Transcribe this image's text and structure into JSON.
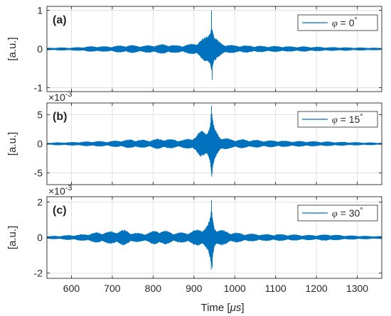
{
  "figure": {
    "xlabel_prefix": "Time [",
    "xlabel_unit": "μs",
    "xlabel_suffix": "]",
    "xticks": [
      "600",
      "700",
      "800",
      "900",
      "1000",
      "1100",
      "1200",
      "1300"
    ],
    "signal_color": "#0072BD",
    "grid_color": "#dcdcdc"
  },
  "chart_data": [
    {
      "type": "line",
      "panel": "(a)",
      "ylabel": "[a.u.]",
      "exponent": null,
      "xlim": [
        540,
        1360
      ],
      "ylim": [
        -1.1,
        1.1
      ],
      "yticks": [
        -1,
        0,
        1
      ],
      "ytick_labels": [
        "-1",
        "0",
        "1"
      ],
      "grid": true,
      "legend": {
        "position": "top-right",
        "label": "φ = 0°",
        "symbol": "φ",
        "equals": " = 0",
        "unit": "°"
      },
      "series": [
        {
          "envelope_x": [
            540,
            560,
            600,
            630,
            660,
            690,
            710,
            730,
            750,
            770,
            790,
            810,
            830,
            850,
            870,
            890,
            905,
            915,
            925,
            935,
            940,
            943,
            946,
            950,
            960,
            970,
            985,
            1000,
            1020,
            1050,
            1080,
            1110,
            1140,
            1170,
            1200,
            1230,
            1260,
            1290,
            1320,
            1360
          ],
          "envelope_amp": [
            0.03,
            0.04,
            0.04,
            0.06,
            0.08,
            0.07,
            0.09,
            0.1,
            0.11,
            0.09,
            0.1,
            0.12,
            0.13,
            0.11,
            0.1,
            0.13,
            0.17,
            0.25,
            0.3,
            0.4,
            0.6,
            1.0,
            0.65,
            0.35,
            0.22,
            0.15,
            0.12,
            0.1,
            0.1,
            0.09,
            0.08,
            0.08,
            0.07,
            0.07,
            0.06,
            0.05,
            0.05,
            0.04,
            0.04,
            0.03
          ],
          "peak_max": 1.0,
          "peak_min": -0.8
        }
      ]
    },
    {
      "type": "line",
      "panel": "(b)",
      "ylabel": "[a.u.]",
      "exponent": "×10^-3",
      "exponent_base": "×10",
      "exponent_power": "-3",
      "xlim": [
        540,
        1360
      ],
      "ylim": [
        -7,
        7
      ],
      "yticks": [
        -5,
        0,
        5
      ],
      "ytick_labels": [
        "-5",
        "0",
        "5"
      ],
      "grid": true,
      "legend": {
        "position": "top-right",
        "label": "φ = 15°",
        "symbol": "φ",
        "equals": " = 15",
        "unit": "°"
      },
      "series": [
        {
          "envelope_x": [
            540,
            560,
            600,
            630,
            660,
            690,
            710,
            730,
            750,
            770,
            790,
            810,
            830,
            850,
            870,
            890,
            905,
            915,
            925,
            935,
            940,
            943,
            946,
            950,
            960,
            970,
            985,
            1000,
            1020,
            1050,
            1080,
            1110,
            1140,
            1170,
            1200,
            1230,
            1260,
            1290,
            1320,
            1360
          ],
          "envelope_amp": [
            0.2,
            0.25,
            0.3,
            0.4,
            0.5,
            0.45,
            0.6,
            0.7,
            0.8,
            0.7,
            0.7,
            0.9,
            0.9,
            0.8,
            0.7,
            1.0,
            1.4,
            2.2,
            2.5,
            3.0,
            4.0,
            6.5,
            4.5,
            2.8,
            1.8,
            1.2,
            0.9,
            0.8,
            0.8,
            0.7,
            0.6,
            0.6,
            0.5,
            0.5,
            0.45,
            0.4,
            0.35,
            0.3,
            0.25,
            0.2
          ],
          "peak_max": 6.5,
          "peak_min": -5.2
        }
      ]
    },
    {
      "type": "line",
      "panel": "(c)",
      "ylabel": "[a.u.]",
      "exponent": "×10^-3",
      "exponent_base": "×10",
      "exponent_power": "-3",
      "xlim": [
        540,
        1360
      ],
      "ylim": [
        -2.3,
        2.3
      ],
      "yticks": [
        -2,
        0,
        2
      ],
      "ytick_labels": [
        "-2",
        "0",
        "2"
      ],
      "grid": true,
      "legend": {
        "position": "top-right",
        "label": "φ = 30°",
        "symbol": "φ",
        "equals": " = 30",
        "unit": "°"
      },
      "series": [
        {
          "envelope_x": [
            540,
            560,
            600,
            630,
            660,
            690,
            710,
            730,
            750,
            770,
            790,
            810,
            830,
            850,
            870,
            890,
            905,
            915,
            925,
            935,
            940,
            943,
            946,
            950,
            960,
            970,
            985,
            1000,
            1020,
            1050,
            1080,
            1110,
            1140,
            1170,
            1200,
            1230,
            1260,
            1290,
            1320,
            1360
          ],
          "envelope_amp": [
            0.08,
            0.1,
            0.15,
            0.2,
            0.3,
            0.35,
            0.4,
            0.45,
            0.3,
            0.25,
            0.3,
            0.45,
            0.4,
            0.3,
            0.3,
            0.35,
            0.45,
            0.55,
            0.6,
            0.8,
            1.2,
            2.1,
            1.3,
            0.7,
            0.5,
            0.45,
            0.35,
            0.3,
            0.25,
            0.22,
            0.2,
            0.2,
            0.18,
            0.16,
            0.15,
            0.2,
            0.14,
            0.12,
            0.1,
            0.08
          ],
          "peak_max": 2.1,
          "peak_min": -1.7
        }
      ]
    }
  ]
}
